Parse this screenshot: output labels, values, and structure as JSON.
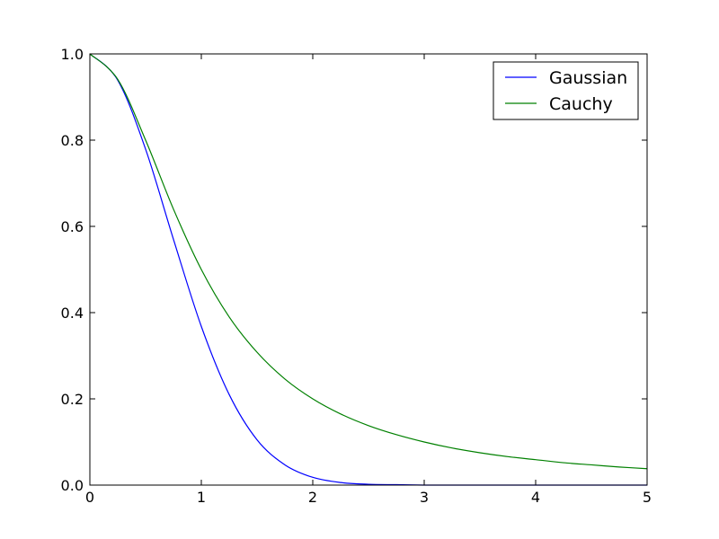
{
  "chart_data": {
    "type": "line",
    "title": "",
    "xlabel": "",
    "ylabel": "",
    "xlim": [
      0,
      5
    ],
    "ylim": [
      0,
      1.0
    ],
    "x_ticks": [
      "0",
      "1",
      "2",
      "3",
      "4",
      "5"
    ],
    "y_ticks": [
      "0.0",
      "0.2",
      "0.4",
      "0.6",
      "0.8",
      "1.0"
    ],
    "grid": false,
    "legend_position": "top-right",
    "x": [
      0,
      0.25,
      0.5,
      0.75,
      1,
      1.25,
      1.5,
      1.75,
      2,
      2.25,
      2.5,
      2.75,
      3,
      3.25,
      3.5,
      3.75,
      4,
      4.25,
      4.5,
      4.75,
      5
    ],
    "series": [
      {
        "name": "Gaussian",
        "color": "#0000ff",
        "values": [
          1.0,
          0.939,
          0.779,
          0.57,
          0.368,
          0.21,
          0.105,
          0.047,
          0.018,
          0.006,
          0.002,
          0.001,
          0.0,
          0.0,
          0.0,
          0.0,
          0.0,
          0.0,
          0.0,
          0.0,
          0.0
        ]
      },
      {
        "name": "Cauchy",
        "color": "#008000",
        "values": [
          1.0,
          0.941,
          0.8,
          0.64,
          0.5,
          0.39,
          0.308,
          0.246,
          0.2,
          0.165,
          0.138,
          0.117,
          0.1,
          0.086,
          0.075,
          0.066,
          0.059,
          0.052,
          0.047,
          0.042,
          0.038
        ]
      }
    ]
  }
}
